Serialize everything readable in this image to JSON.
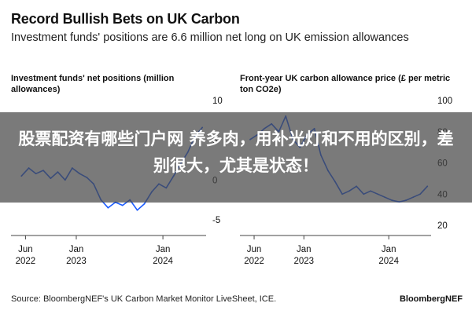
{
  "header": {
    "title": "Record Bullish Bets on UK Carbon",
    "subtitle": "Investment funds' positions are 6.6 million net long on UK emission allowances"
  },
  "footer": {
    "source": "Source: BloombergNEF's UK Carbon Market Monitor LiveSheet, ICE.",
    "brand": "BloombergNEF"
  },
  "overlay": {
    "text": "股票配资有哪些门户网 养多肉，用补光灯和不用的区别，差别很大，尤其是状态！"
  },
  "colors": {
    "series": "#1a5bff",
    "axis": "#444444",
    "text": "#111111"
  },
  "chart_data": [
    {
      "type": "line",
      "title": "Investment funds' net positions (million allowances)",
      "x_ticks": [
        "Jun 2022",
        "Jan 2023",
        "Jan 2024"
      ],
      "y_ticks": [
        10,
        5,
        0,
        -5
      ],
      "ylim": [
        -6,
        10
      ],
      "y_axis_side": "right",
      "grid": false,
      "series": [
        {
          "x": [
            "2022-05-15",
            "2022-06-15",
            "2022-07-15",
            "2022-08-15",
            "2022-09-15",
            "2022-10-15",
            "2022-11-15",
            "2022-12-15",
            "2023-01-15",
            "2023-02-15",
            "2023-03-15",
            "2023-04-15",
            "2023-05-15",
            "2023-06-15",
            "2023-07-15",
            "2023-08-15",
            "2023-09-15",
            "2023-10-15",
            "2023-11-15",
            "2023-12-15",
            "2024-01-15",
            "2024-02-15",
            "2024-03-15",
            "2024-04-15",
            "2024-05-15",
            "2024-06-15"
          ],
          "y": [
            0.5,
            1.5,
            0.8,
            1.2,
            0.2,
            1.0,
            0.0,
            1.5,
            0.8,
            0.3,
            -0.5,
            -2.5,
            -3.5,
            -2.8,
            -3.2,
            -2.5,
            -3.8,
            -3.0,
            -1.5,
            -0.5,
            -1.0,
            0.5,
            2.0,
            3.5,
            5.5,
            6.6
          ]
        }
      ]
    },
    {
      "type": "line",
      "title": "Front-year UK carbon allowance price (£ per metric ton CO2e)",
      "x_ticks": [
        "Jun 2022",
        "Jan 2023",
        "Jan 2024"
      ],
      "y_ticks": [
        100,
        80,
        60,
        40,
        20
      ],
      "ylim": [
        20,
        100
      ],
      "y_axis_side": "right",
      "grid": false,
      "series": [
        {
          "x": [
            "2022-05-15",
            "2022-06-15",
            "2022-07-15",
            "2022-08-15",
            "2022-09-15",
            "2022-10-15",
            "2022-11-15",
            "2022-12-15",
            "2023-01-15",
            "2023-02-15",
            "2023-03-15",
            "2023-04-15",
            "2023-05-15",
            "2023-06-15",
            "2023-07-15",
            "2023-08-15",
            "2023-09-15",
            "2023-10-15",
            "2023-11-15",
            "2023-12-15",
            "2024-01-15",
            "2024-02-15",
            "2024-03-15",
            "2024-04-15",
            "2024-05-15",
            "2024-06-15"
          ],
          "y": [
            75,
            78,
            82,
            85,
            80,
            90,
            75,
            70,
            78,
            82,
            65,
            55,
            48,
            40,
            42,
            45,
            40,
            42,
            40,
            38,
            36,
            35,
            36,
            38,
            40,
            45
          ]
        }
      ]
    }
  ]
}
